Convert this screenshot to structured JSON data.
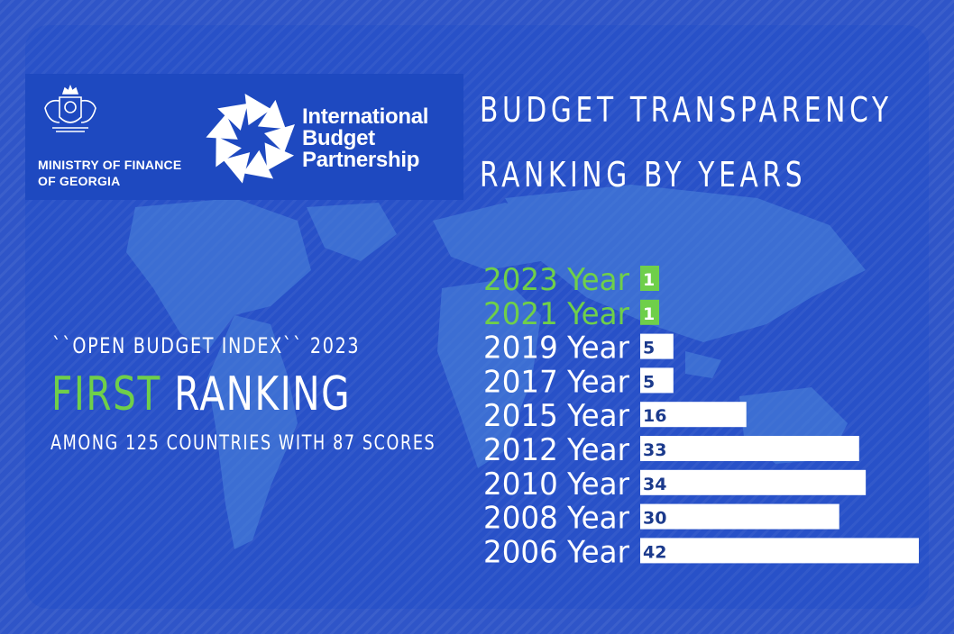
{
  "header": {
    "ministry_line1": "MINISTRY OF FINANCE",
    "ministry_line2": "OF GEORGIA",
    "ibp_line1": "International",
    "ibp_line2": "Budget",
    "ibp_line3": "Partnership"
  },
  "headline": {
    "obi_text": "``OPEN BUDGET INDEX`` 2023",
    "first_word": "FIRST",
    "ranking_word": "RANKING",
    "among_text": "AMONG 125 COUNTRIES WITH 87 SCORES"
  },
  "colors": {
    "background": "#2f55c8",
    "highlight_green": "#6fcf4a",
    "bar_white": "#ffffff",
    "value_navy": "#1b3a8c"
  },
  "chart_data": {
    "type": "bar",
    "orientation": "horizontal",
    "title": "BUDGET TRANSPARENCY RANKING BY YEARS",
    "title_line1": "BUDGET TRANSPARENCY",
    "title_line2": "RANKING BY YEARS",
    "categories": [
      "2023 Year",
      "2021 Year",
      "2019 Year",
      "2017 Year",
      "2015 Year",
      "2012 Year",
      "2010 Year",
      "2008 Year",
      "2006 Year"
    ],
    "values": [
      1,
      1,
      5,
      5,
      16,
      33,
      34,
      30,
      42
    ],
    "highlighted": [
      true,
      true,
      false,
      false,
      false,
      false,
      false,
      false,
      false
    ],
    "xlim": [
      0,
      42
    ],
    "grid": false,
    "xlabel": "",
    "ylabel": ""
  }
}
